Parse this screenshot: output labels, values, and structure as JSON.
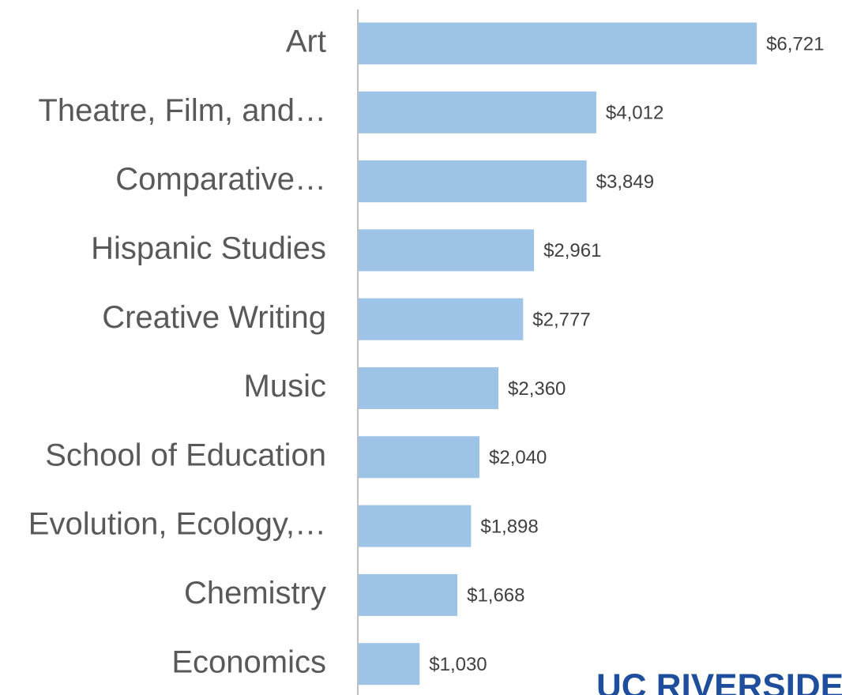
{
  "chart_data": {
    "type": "hbar",
    "categories": [
      "Art",
      "Theatre, Film, and…",
      "Comparative…",
      "Hispanic Studies",
      "Creative Writing",
      "Music",
      "School of Education",
      "Evolution, Ecology,…",
      "Chemistry",
      "Economics"
    ],
    "values": [
      6721,
      4012,
      3849,
      2961,
      2777,
      2360,
      2040,
      1898,
      1668,
      1030
    ],
    "value_labels": [
      "$6,721",
      "$4,012",
      "$3,849",
      "$2,961",
      "$2,777",
      "$2,360",
      "$2,040",
      "$1,898",
      "$1,668",
      "$1,030"
    ],
    "color": "#9dc3e6",
    "xlim": [
      0,
      8000
    ],
    "logo": "UC RIVERSIDE"
  }
}
